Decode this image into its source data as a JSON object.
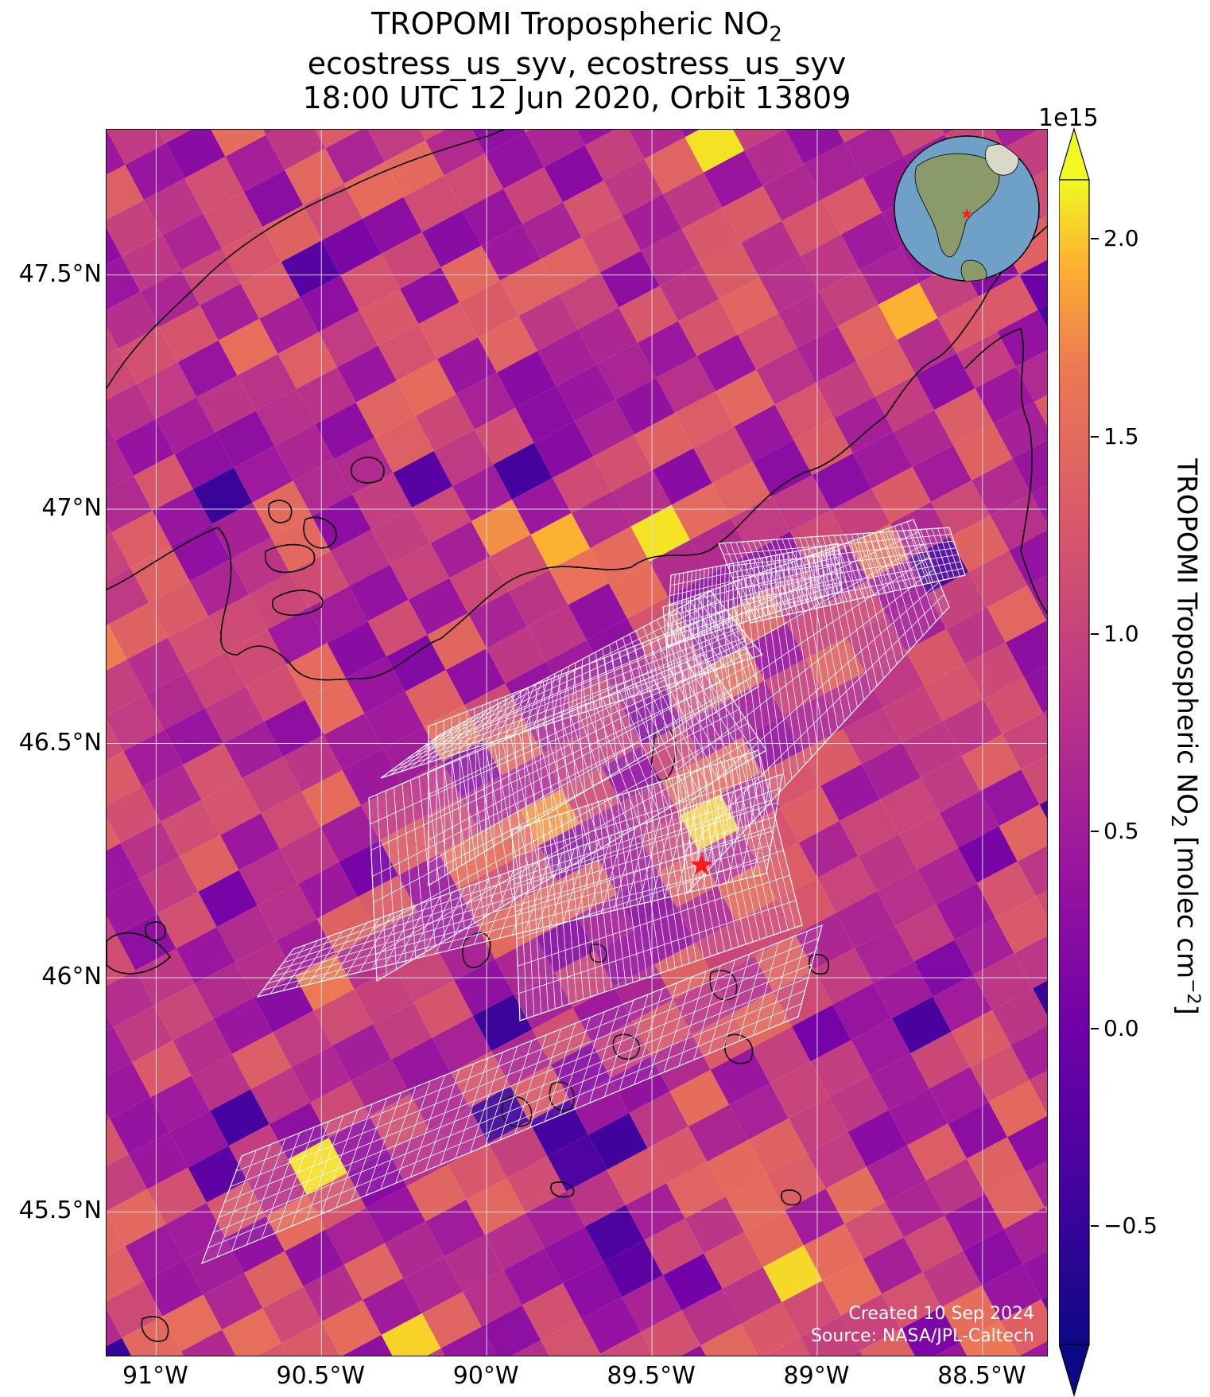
{
  "title": {
    "line1_prefix": "TROPOMI Tropospheric NO",
    "line1_sub": "2",
    "line2": "ecostress_us_syv, ecostress_us_syv",
    "line3": "18:00 UTC 12 Jun 2020, Orbit 13809"
  },
  "axes": {
    "lat_labels": [
      "47.5°N",
      "47°N",
      "46.5°N",
      "46°N",
      "45.5°N"
    ],
    "lat_values": [
      47.5,
      47.0,
      46.5,
      46.0,
      45.5
    ],
    "lon_labels": [
      "91°W",
      "90.5°W",
      "90°W",
      "89.5°W",
      "89°W",
      "88.5°W"
    ],
    "lon_values": [
      -91.0,
      -90.5,
      -90.0,
      -89.5,
      -89.0,
      -88.5
    ],
    "lat_range": [
      45.19,
      47.81
    ],
    "lon_range": [
      -91.15,
      -88.3
    ],
    "gridlines": true
  },
  "colorbar": {
    "exponent_label": "1e15",
    "ticks": [
      "2.0",
      "1.5",
      "1.0",
      "0.5",
      "0.0",
      "−0.5"
    ],
    "tick_values": [
      2.0,
      1.5,
      1.0,
      0.5,
      0.0,
      -0.5
    ],
    "range": [
      -0.8,
      2.15
    ],
    "colormap": "plasma",
    "extend": "both",
    "label_prefix": "TROPOMI Tropospheric NO",
    "label_sub": "2",
    "label_mid": " [molec cm",
    "label_sup": "−2",
    "label_suffix": "]"
  },
  "site_marker": {
    "lat": 46.24,
    "lon": -89.35,
    "color": "#ff1a1a",
    "symbol": "star"
  },
  "credit": {
    "line1": "Created 10 Sep 2024",
    "line2": "Source: NASA/JPL-Caltech"
  },
  "colors": {
    "coastline": "#000000",
    "footprint_grid": "#ffffff",
    "gridline": "#d9d9d9"
  },
  "inset_globe": {
    "marker_color": "#ff1a1a",
    "region": "North America"
  }
}
